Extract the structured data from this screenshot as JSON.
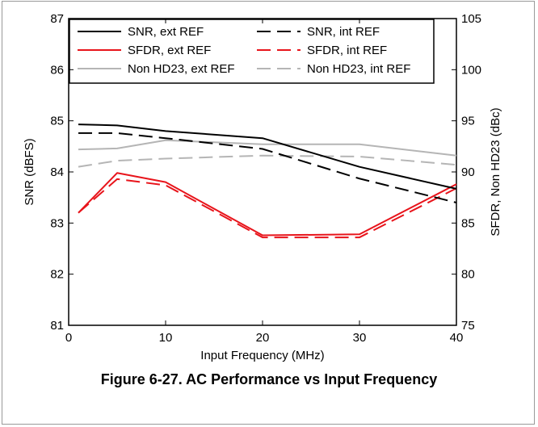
{
  "caption": "Figure 6-27. AC Performance vs Input Frequency",
  "colors": {
    "black": "#000000",
    "red": "#e8141b",
    "gray": "#b5b5b5"
  },
  "chart_data": {
    "type": "line",
    "title": "",
    "xlabel": "Input Frequency (MHz)",
    "ylabel": "SNR (dBFS)",
    "y2label": "SFDR, Non HD23 (dBc)",
    "xlim": [
      0,
      40
    ],
    "ylim": [
      81,
      87
    ],
    "y2lim": [
      75,
      105
    ],
    "xticks": [
      0,
      10,
      20,
      30,
      40
    ],
    "yticks": [
      81,
      82,
      83,
      84,
      85,
      86,
      87
    ],
    "y2ticks": [
      75,
      80,
      85,
      90,
      95,
      100,
      105
    ],
    "grid": false,
    "legend_position": "top",
    "series": [
      {
        "name": "SNR, ext REF",
        "axis": "left",
        "color": "#000000",
        "dash": "solid",
        "x": [
          1,
          5,
          10,
          20,
          30,
          40
        ],
        "y": [
          84.93,
          84.91,
          84.8,
          84.66,
          84.1,
          83.67
        ]
      },
      {
        "name": "SNR, int REF",
        "axis": "left",
        "color": "#000000",
        "dash": "dashed",
        "x": [
          1,
          5,
          10,
          20,
          30,
          40
        ],
        "y": [
          84.76,
          84.76,
          84.66,
          84.45,
          83.87,
          83.4
        ]
      },
      {
        "name": "SFDR, ext REF",
        "axis": "right",
        "color": "#e8141b",
        "dash": "solid",
        "x": [
          1,
          5,
          10,
          20,
          30,
          40
        ],
        "y": [
          86.0,
          89.9,
          89.0,
          83.8,
          83.9,
          88.8
        ]
      },
      {
        "name": "SFDR, int REF",
        "axis": "right",
        "color": "#e8141b",
        "dash": "dashed",
        "x": [
          1,
          5,
          10,
          20,
          30,
          40
        ],
        "y": [
          86.0,
          89.3,
          88.7,
          83.6,
          83.6,
          88.4
        ]
      },
      {
        "name": "Non HD23, ext REF",
        "axis": "right",
        "color": "#b5b5b5",
        "dash": "solid",
        "x": [
          1,
          5,
          10,
          20,
          30,
          40
        ],
        "y": [
          92.2,
          92.3,
          93.1,
          92.7,
          92.7,
          91.6
        ]
      },
      {
        "name": "Non HD23, int REF",
        "axis": "right",
        "color": "#b5b5b5",
        "dash": "dashed",
        "x": [
          1,
          5,
          10,
          20,
          30,
          40
        ],
        "y": [
          90.5,
          91.1,
          91.3,
          91.6,
          91.5,
          90.7
        ]
      }
    ]
  }
}
